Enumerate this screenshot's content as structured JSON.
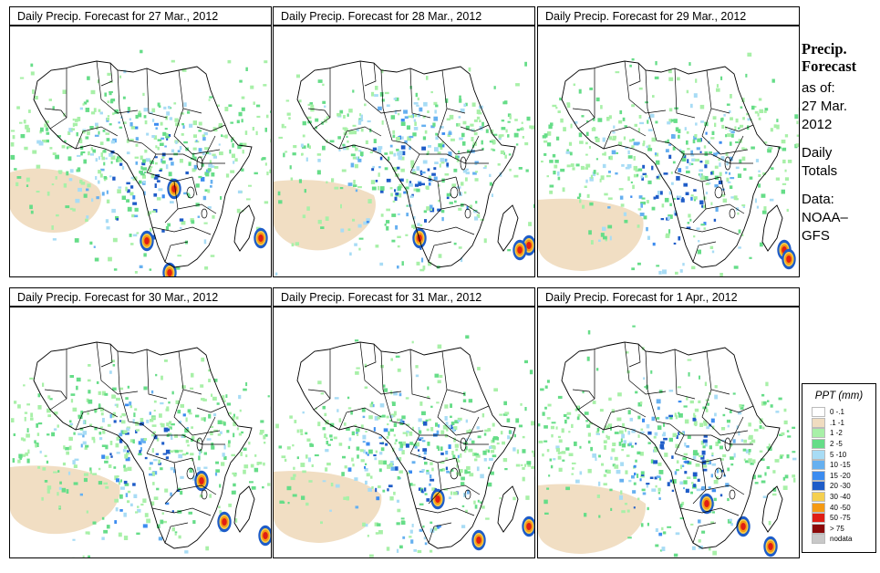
{
  "panels": [
    {
      "title": "Daily Precip. Forecast for  27 Mar., 2012",
      "day": 0
    },
    {
      "title": "Daily Precip. Forecast for  28 Mar., 2012",
      "day": 1
    },
    {
      "title": "Daily Precip. Forecast for  29 Mar., 2012",
      "day": 2
    },
    {
      "title": "Daily Precip. Forecast for  30 Mar., 2012",
      "day": 3
    },
    {
      "title": "Daily Precip. Forecast for  31 Mar., 2012",
      "day": 4
    },
    {
      "title": "Daily Precip. Forecast for  1 Apr., 2012",
      "day": 5
    }
  ],
  "side_info": {
    "title_line1": "Precip.",
    "title_line2": "Forecast",
    "asof_line1": "as of:",
    "asof_line2": "27 Mar.",
    "asof_line3": "2012",
    "totals_line1": "Daily",
    "totals_line2": "Totals",
    "data_line1": "Data:",
    "data_line2": "NOAA–",
    "data_line3": "GFS"
  },
  "legend": {
    "title": "PPT (mm)",
    "items": [
      {
        "label": "0 -.1",
        "color": "#ffffff"
      },
      {
        "label": ".1 -1",
        "color": "#f0dcc0"
      },
      {
        "label": "1 -2",
        "color": "#a8f0a8"
      },
      {
        "label": "2 -5",
        "color": "#66dd88"
      },
      {
        "label": "5 -10",
        "color": "#a8dcf5"
      },
      {
        "label": "10 -15",
        "color": "#66b0f0"
      },
      {
        "label": "15 -20",
        "color": "#3c8cf0"
      },
      {
        "label": "20 -30",
        "color": "#1e5cc8"
      },
      {
        "label": "30 -40",
        "color": "#f5d050"
      },
      {
        "label": "40 -50",
        "color": "#f59a14"
      },
      {
        "label": "50 -75",
        "color": "#e01e14"
      },
      {
        "label": "> 75",
        "color": "#8c0a0a"
      },
      {
        "label": "nodata",
        "color": "#c8c8c8"
      }
    ]
  }
}
